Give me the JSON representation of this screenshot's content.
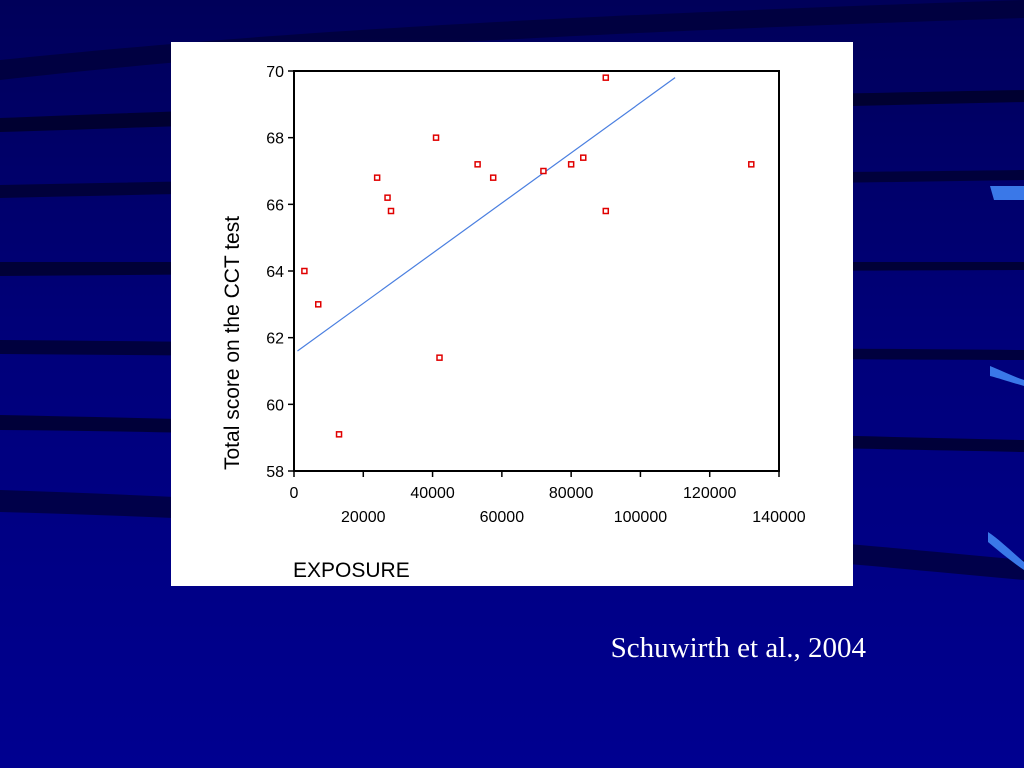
{
  "citation": "Schuwirth et al., 2004",
  "chart_data": {
    "type": "scatter",
    "title": "",
    "xlabel": "EXPOSURE",
    "ylabel": "Total score on the CCT test",
    "xlim": [
      0,
      140000
    ],
    "ylim": [
      58,
      70
    ],
    "xticks": [
      0,
      20000,
      40000,
      60000,
      80000,
      100000,
      120000,
      140000
    ],
    "yticks": [
      58,
      60,
      62,
      64,
      66,
      68,
      70
    ],
    "grid": false,
    "marker_color": "#e00000",
    "line_color": "#4a7fe0",
    "points": [
      {
        "x": 3000,
        "y": 64.0
      },
      {
        "x": 7000,
        "y": 63.0
      },
      {
        "x": 13000,
        "y": 59.1
      },
      {
        "x": 24000,
        "y": 66.8
      },
      {
        "x": 27000,
        "y": 66.2
      },
      {
        "x": 28000,
        "y": 65.8
      },
      {
        "x": 41000,
        "y": 68.0
      },
      {
        "x": 42000,
        "y": 61.4
      },
      {
        "x": 53000,
        "y": 67.2
      },
      {
        "x": 57500,
        "y": 66.8
      },
      {
        "x": 72000,
        "y": 67.0
      },
      {
        "x": 80000,
        "y": 67.2
      },
      {
        "x": 83500,
        "y": 67.4
      },
      {
        "x": 90000,
        "y": 69.8
      },
      {
        "x": 90000,
        "y": 65.8
      },
      {
        "x": 132000,
        "y": 67.2
      }
    ],
    "regression_line": [
      {
        "x": 1000,
        "y": 61.6
      },
      {
        "x": 110000,
        "y": 69.8
      }
    ]
  }
}
